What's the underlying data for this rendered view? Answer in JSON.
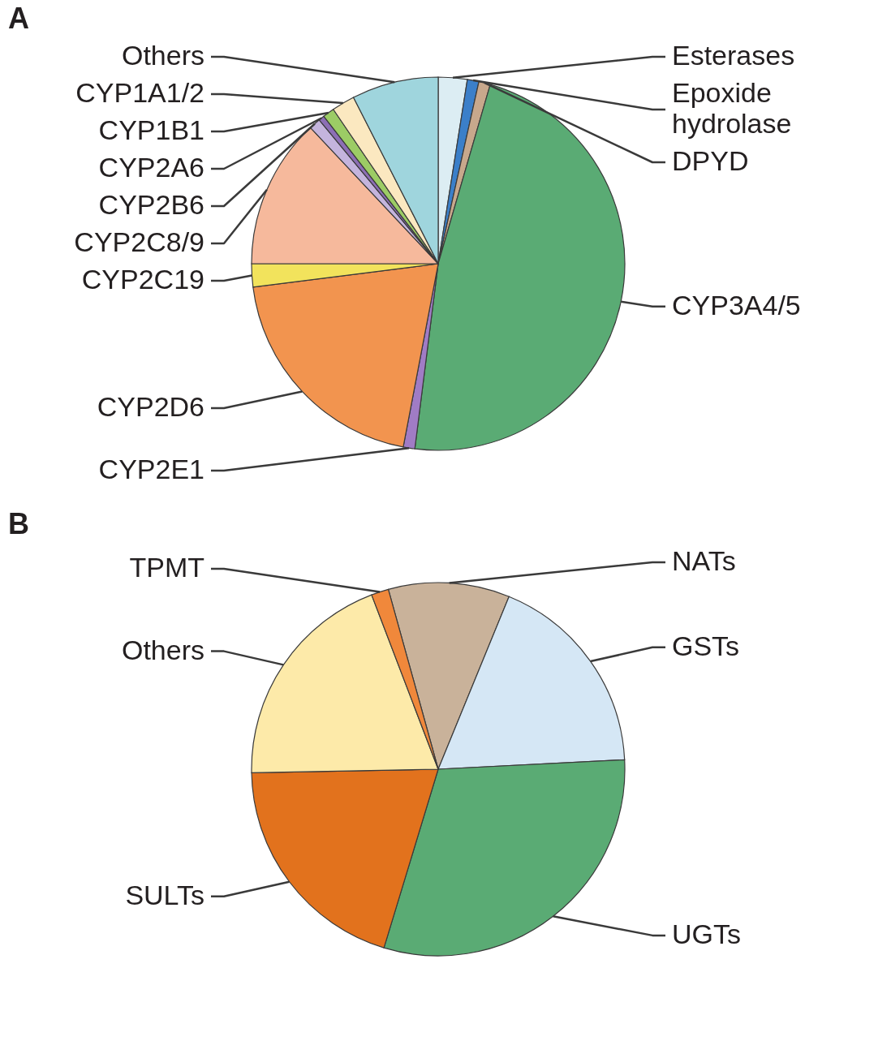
{
  "chart_data": [
    {
      "type": "pie",
      "title": "A",
      "categories": [
        "Esterases",
        "Epoxide hydrolase",
        "DPYD",
        "CYP3A4/5",
        "CYP2E1",
        "CYP2D6",
        "CYP2C19",
        "CYP2C8/9",
        "CYP2B6",
        "CYP2A6",
        "CYP1B1",
        "CYP1A1/2",
        "Others"
      ],
      "values": [
        2.5,
        1,
        1,
        47.5,
        1,
        20,
        2,
        13,
        1,
        0.5,
        1,
        2,
        7.5
      ],
      "colors": [
        "#dcedf3",
        "#3b7fc9",
        "#c8a88c",
        "#5aab74",
        "#a07cc5",
        "#f2944f",
        "#f2e35c",
        "#f6b99c",
        "#c4b4dd",
        "#8c6fb5",
        "#9ccc65",
        "#fbe8c0",
        "#9fd5dd"
      ]
    },
    {
      "type": "pie",
      "title": "B",
      "categories": [
        "NATs",
        "GSTs",
        "UGTs",
        "SULTs",
        "Others",
        "TPMT"
      ],
      "values": [
        10.5,
        18,
        30.5,
        20,
        19.5,
        1.5
      ],
      "colors": [
        "#c9b29a",
        "#d5e7f5",
        "#5aab74",
        "#e2721d",
        "#fdeaa9",
        "#f0883b"
      ]
    }
  ]
}
